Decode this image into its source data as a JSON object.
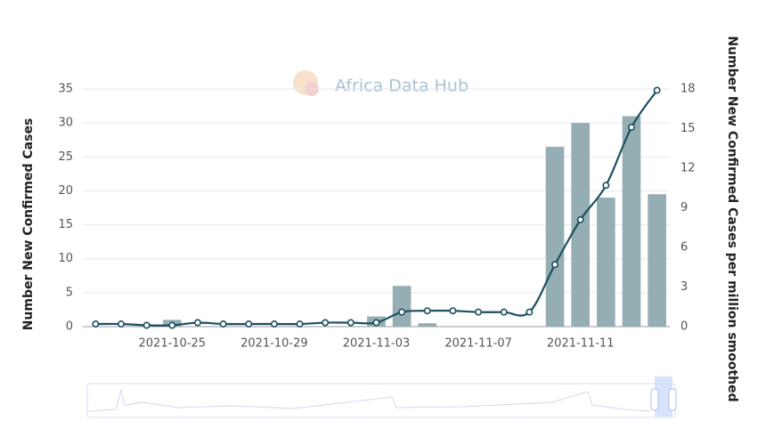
{
  "chart_data": {
    "type": "bar+line",
    "watermark": "Africa Data Hub",
    "y_label": "Number New Confirmed Cases",
    "y2_label": "Number New Confirmed Cases per million smoothed",
    "categories": [
      null,
      null,
      null,
      "2021-10-25",
      null,
      null,
      null,
      "2021-10-29",
      null,
      null,
      null,
      "2021-11-03",
      null,
      null,
      null,
      "2021-11-07",
      null,
      null,
      null,
      "2021-11-11",
      null,
      null,
      null
    ],
    "series": [
      {
        "type": "bar",
        "color": "#95aeb4",
        "values": [
          0,
          0,
          0,
          1,
          0,
          0,
          0,
          0,
          0,
          0,
          0,
          1.5,
          6,
          0.5,
          0,
          0,
          0,
          0,
          26.5,
          30,
          19,
          31,
          19.5
        ]
      },
      {
        "type": "line",
        "axis": "y2",
        "color": "#1b4f5e",
        "values": [
          0.2,
          0.2,
          0.1,
          0.1,
          0.3,
          0.2,
          0.2,
          0.2,
          0.2,
          0.3,
          0.3,
          0.3,
          1.1,
          1.2,
          1.2,
          1.1,
          1.1,
          1.1,
          4.7,
          8.1,
          10.7,
          15.1,
          17.9
        ]
      }
    ],
    "ylim": [
      0,
      35
    ],
    "yticks": [
      0,
      5,
      10,
      15,
      20,
      25,
      30,
      35
    ],
    "y2lim": [
      0,
      18
    ],
    "y2ticks": [
      0,
      3,
      6,
      9,
      12,
      15,
      18
    ],
    "grid": true
  }
}
